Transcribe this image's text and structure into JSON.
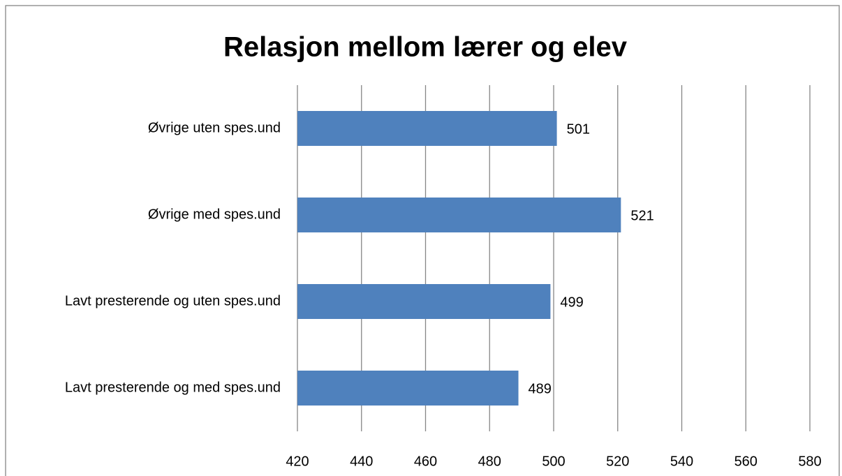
{
  "chart_data": {
    "type": "bar",
    "orientation": "horizontal",
    "title": "Relasjon mellom lærer og elev",
    "categories": [
      "Øvrige uten spes.und",
      "Øvrige med spes.und",
      "Lavt presterende og uten spes.und",
      "Lavt presterende og med spes.und"
    ],
    "values": [
      501,
      521,
      499,
      489
    ],
    "color": "#4f81bd",
    "xlim": [
      420,
      580
    ],
    "xticks": [
      420,
      440,
      460,
      480,
      500,
      520,
      540,
      560,
      580
    ],
    "grid": true
  }
}
